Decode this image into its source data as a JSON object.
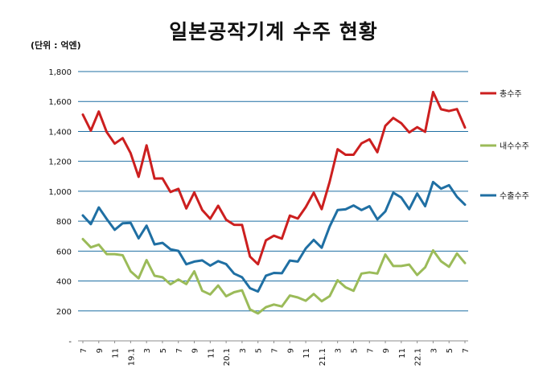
{
  "chart_data": {
    "type": "line",
    "title": "일본공작기계 수주 현황",
    "unit_label": "(단위 : 억엔)",
    "ylim": [
      0,
      1800
    ],
    "y_ticks": [
      "-",
      "200",
      "400",
      "600",
      "800",
      "1,000",
      "1,200",
      "1,400",
      "1,600",
      "1,800"
    ],
    "y_tick_values": [
      0,
      200,
      400,
      600,
      800,
      1000,
      1200,
      1400,
      1600,
      1800
    ],
    "x_tick_labels": [
      "7",
      "9",
      "11",
      "19.1",
      "3",
      "5",
      "7",
      "9",
      "11",
      "20.1",
      "3",
      "5",
      "7",
      "9",
      "11",
      "21.1",
      "3",
      "5",
      "7",
      "9",
      "11",
      "22.1",
      "3",
      "5",
      "7"
    ],
    "grid": true,
    "legend_position": "right",
    "series": [
      {
        "name": "총수주",
        "color": "#cc1f1f",
        "values": [
          1512,
          1405,
          1533,
          1395,
          1318,
          1355,
          1254,
          1096,
          1307,
          1085,
          1086,
          995,
          1016,
          885,
          992,
          875,
          816,
          903,
          810,
          776,
          775,
          563,
          512,
          672,
          703,
          683,
          837,
          817,
          894,
          990,
          880,
          1063,
          1281,
          1244,
          1244,
          1320,
          1347,
          1261,
          1437,
          1490,
          1455,
          1393,
          1428,
          1397,
          1663,
          1548,
          1536,
          1549,
          1426
        ]
      },
      {
        "name": "내수수주",
        "color": "#9bbb59",
        "values": [
          680,
          625,
          643,
          580,
          580,
          572,
          465,
          418,
          540,
          435,
          425,
          378,
          410,
          380,
          465,
          335,
          310,
          370,
          298,
          325,
          338,
          210,
          183,
          225,
          243,
          230,
          303,
          290,
          268,
          313,
          265,
          299,
          405,
          358,
          335,
          450,
          458,
          450,
          577,
          500,
          500,
          510,
          440,
          491,
          605,
          532,
          495,
          584,
          520
        ]
      },
      {
        "name": "수출수주",
        "color": "#1f6fa3",
        "values": [
          838,
          780,
          892,
          814,
          742,
          786,
          789,
          685,
          770,
          645,
          655,
          612,
          601,
          512,
          530,
          538,
          503,
          533,
          513,
          450,
          425,
          352,
          330,
          436,
          454,
          452,
          537,
          530,
          618,
          675,
          622,
          764,
          874,
          879,
          905,
          874,
          900,
          812,
          865,
          990,
          958,
          880,
          985,
          900,
          1062,
          1017,
          1040,
          963,
          910
        ]
      }
    ]
  }
}
